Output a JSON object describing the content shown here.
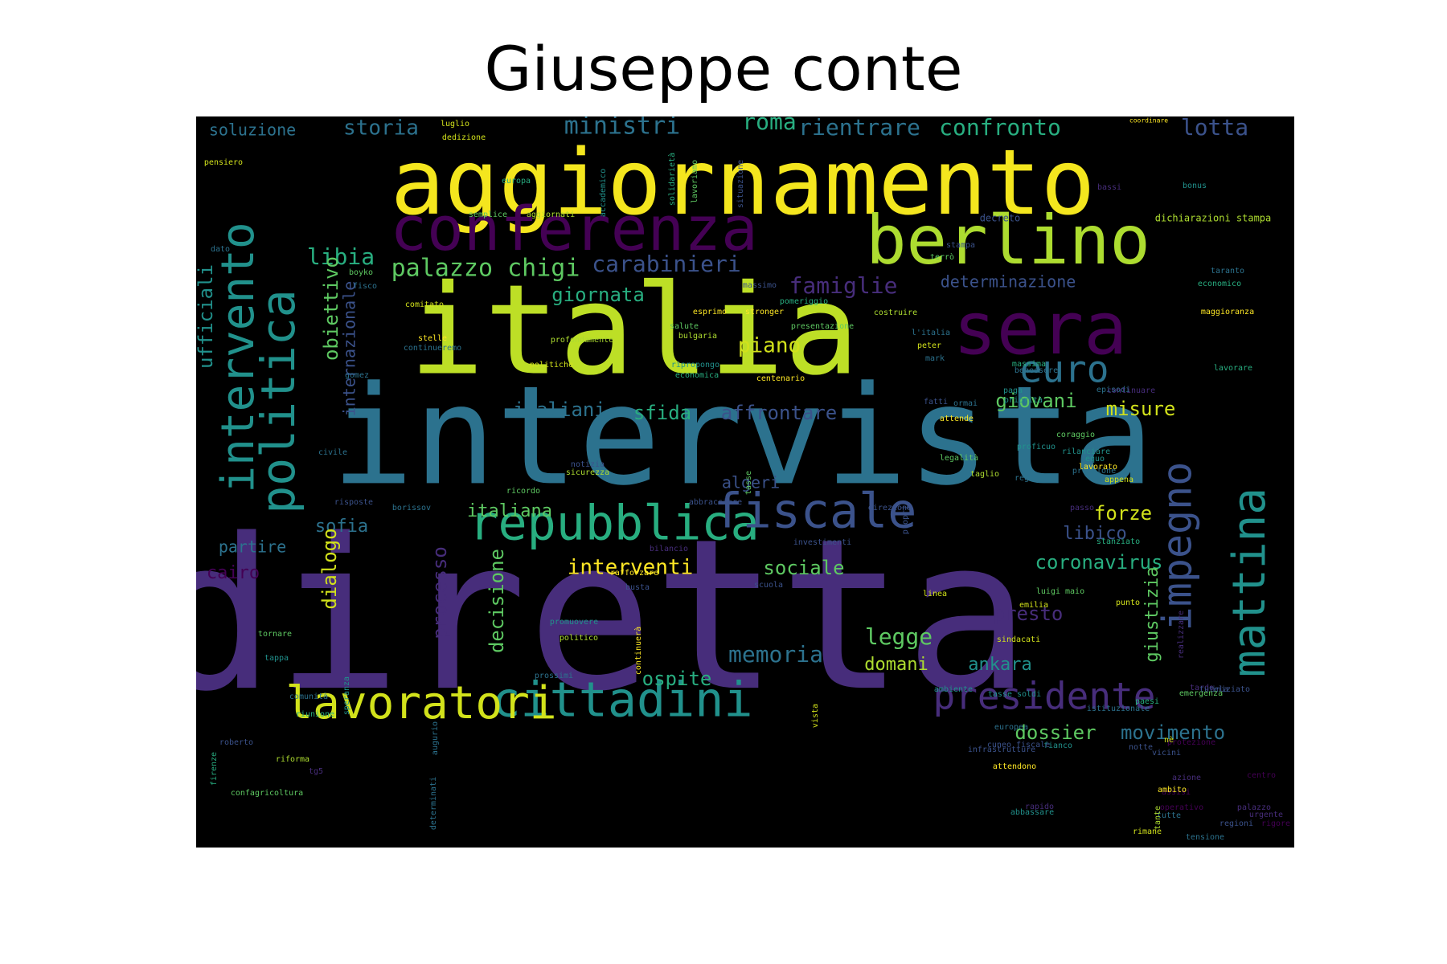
{
  "figure": {
    "title": "Giuseppe conte"
  },
  "palette": [
    "#440154",
    "#472d7b",
    "#3b528b",
    "#2c728e",
    "#21918c",
    "#28ae80",
    "#5ec962",
    "#addc30",
    "#fde725"
  ],
  "words": [
    {
      "text": "diretta",
      "color": "#472d7b"
    },
    {
      "text": "intervista",
      "color": "#2c728e"
    },
    {
      "text": "italia",
      "color": "#bddf26"
    },
    {
      "text": "aggiornamento",
      "color": "#f4e61e"
    },
    {
      "text": "sera",
      "color": "#440154"
    },
    {
      "text": "berlino",
      "color": "#addc30"
    },
    {
      "text": "conferenza",
      "color": "#440154"
    },
    {
      "text": "repubblica",
      "color": "#28ae80"
    },
    {
      "text": "cittadini",
      "color": "#21918c"
    },
    {
      "text": "lavoratori",
      "color": "#d2e21b"
    },
    {
      "text": "fiscale",
      "color": "#3b528b"
    },
    {
      "text": "politica",
      "color": "#21918c"
    },
    {
      "text": "intervento",
      "color": "#21918c"
    },
    {
      "text": "mattina",
      "color": "#21918c"
    },
    {
      "text": "impegno",
      "color": "#3b528b"
    },
    {
      "text": "presidente",
      "color": "#472d7b"
    },
    {
      "text": "euro",
      "color": "#2c728e"
    },
    {
      "text": "palazzo chigi",
      "color": "#5ec962"
    },
    {
      "text": "carabinieri",
      "color": "#3b528b"
    },
    {
      "text": "libia",
      "color": "#28ae80"
    },
    {
      "text": "obiettivo",
      "color": "#5ec962"
    },
    {
      "text": "ufficiali",
      "color": "#21918c"
    },
    {
      "text": "internazionale",
      "color": "#3b528b"
    },
    {
      "text": "giornata",
      "color": "#28ae80"
    },
    {
      "text": "famiglie",
      "color": "#472d7b"
    },
    {
      "text": "determinazione",
      "color": "#3b528b"
    },
    {
      "text": "storia",
      "color": "#2c728e"
    },
    {
      "text": "ministri",
      "color": "#2c728e"
    },
    {
      "text": "roma",
      "color": "#28ae80"
    },
    {
      "text": "rientrare",
      "color": "#2c728e"
    },
    {
      "text": "confronto",
      "color": "#28ae80"
    },
    {
      "text": "lotta",
      "color": "#3b528b"
    },
    {
      "text": "soluzione",
      "color": "#2c728e"
    },
    {
      "text": "piano",
      "color": "#d2e21b"
    },
    {
      "text": "italiani",
      "color": "#2c728e"
    },
    {
      "text": "sfida",
      "color": "#28ae80"
    },
    {
      "text": "affrontare",
      "color": "#3b528b"
    },
    {
      "text": "giovani",
      "color": "#5ec962"
    },
    {
      "text": "misure",
      "color": "#d2e21b"
    },
    {
      "text": "algeri",
      "color": "#3b528b"
    },
    {
      "text": "italiana",
      "color": "#5ec962"
    },
    {
      "text": "sofia",
      "color": "#2c728e"
    },
    {
      "text": "partire",
      "color": "#2c728e"
    },
    {
      "text": "forze",
      "color": "#d2e21b"
    },
    {
      "text": "libico",
      "color": "#3b528b"
    },
    {
      "text": "coronavirus",
      "color": "#28ae80"
    },
    {
      "text": "interventi",
      "color": "#fde725"
    },
    {
      "text": "sociale",
      "color": "#5ec962"
    },
    {
      "text": "dialogo",
      "color": "#d2e21b"
    },
    {
      "text": "processo",
      "color": "#472d7b"
    },
    {
      "text": "decisione",
      "color": "#5ec962"
    },
    {
      "text": "giustizia",
      "color": "#5ec962"
    },
    {
      "text": "presto",
      "color": "#472d7b"
    },
    {
      "text": "legge",
      "color": "#5ec962"
    },
    {
      "text": "memoria",
      "color": "#2c728e"
    },
    {
      "text": "ospite",
      "color": "#28ae80"
    },
    {
      "text": "domani",
      "color": "#addc30"
    },
    {
      "text": "ankara",
      "color": "#21918c"
    },
    {
      "text": "dossier",
      "color": "#5ec962"
    },
    {
      "text": "movimento",
      "color": "#2c728e"
    },
    {
      "text": "cairo",
      "color": "#440154"
    },
    {
      "text": "luglio",
      "color": "#d2e21b"
    },
    {
      "text": "dedizione",
      "color": "#d2e21b"
    },
    {
      "text": "pensiero",
      "color": "#d2e21b"
    },
    {
      "text": "europa",
      "color": "#28ae80"
    },
    {
      "text": "accademico",
      "color": "#21918c"
    },
    {
      "text": "solidarietà",
      "color": "#28ae80"
    },
    {
      "text": "lavoriamo",
      "color": "#5ec962"
    },
    {
      "text": "situazione",
      "color": "#3b528b"
    },
    {
      "text": "semplice",
      "color": "#5ec962"
    },
    {
      "text": "aggiornati",
      "color": "#addc30"
    },
    {
      "text": "decreto",
      "color": "#3b528b"
    },
    {
      "text": "dichiarazioni stampa",
      "color": "#addc30"
    },
    {
      "text": "coordinare",
      "color": "#fde725"
    },
    {
      "text": "bonus",
      "color": "#21918c"
    },
    {
      "text": "bassi",
      "color": "#472d7b"
    },
    {
      "text": "dato",
      "color": "#2c728e"
    },
    {
      "text": "boyko",
      "color": "#5ec962"
    },
    {
      "text": "fisco",
      "color": "#2c728e"
    },
    {
      "text": "massimo",
      "color": "#3b528b"
    },
    {
      "text": "terrò",
      "color": "#5ec962"
    },
    {
      "text": "stampa",
      "color": "#3b528b"
    },
    {
      "text": "economico",
      "color": "#28ae80"
    },
    {
      "text": "taranto",
      "color": "#2c728e"
    },
    {
      "text": "comitato",
      "color": "#d2e21b"
    },
    {
      "text": "esprimo",
      "color": "#fde725"
    },
    {
      "text": "stronger",
      "color": "#fde725"
    },
    {
      "text": "pomeriggio",
      "color": "#28ae80"
    },
    {
      "text": "costruire",
      "color": "#addc30"
    },
    {
      "text": "maggioranza",
      "color": "#fde725"
    },
    {
      "text": "stelle",
      "color": "#fde725"
    },
    {
      "text": "continueremo",
      "color": "#2c728e"
    },
    {
      "text": "politiche",
      "color": "#d2e21b"
    },
    {
      "text": "profondamente",
      "color": "#addc30"
    },
    {
      "text": "bulgaria",
      "color": "#addc30"
    },
    {
      "text": "ripropongo",
      "color": "#21918c"
    },
    {
      "text": "economica",
      "color": "#28ae80"
    },
    {
      "text": "salute",
      "color": "#5ec962"
    },
    {
      "text": "presentazione",
      "color": "#5ec962"
    },
    {
      "text": "l'italia",
      "color": "#2c728e"
    },
    {
      "text": "peter",
      "color": "#d2e21b"
    },
    {
      "text": "mark",
      "color": "#2c728e"
    },
    {
      "text": "massima",
      "color": "#28ae80"
    },
    {
      "text": "benessere",
      "color": "#2c728e"
    },
    {
      "text": "lavorare",
      "color": "#28ae80"
    },
    {
      "text": "paga",
      "color": "#21918c"
    },
    {
      "text": "centenario",
      "color": "#fde725"
    },
    {
      "text": "episodi",
      "color": "#2c728e"
    },
    {
      "text": "continuare",
      "color": "#472d7b"
    },
    {
      "text": "gomez",
      "color": "#2c728e"
    },
    {
      "text": "fatti",
      "color": "#3b528b"
    },
    {
      "text": "ormai",
      "color": "#2c728e"
    },
    {
      "text": "attende",
      "color": "#fde725"
    },
    {
      "text": "priorità",
      "color": "#21918c"
    },
    {
      "text": "coraggio",
      "color": "#5ec962"
    },
    {
      "text": "rilanciare",
      "color": "#21918c"
    },
    {
      "text": "proficuo",
      "color": "#21918c"
    },
    {
      "text": "civile",
      "color": "#2c728e"
    },
    {
      "text": "notizia",
      "color": "#3b528b"
    },
    {
      "text": "sicurezza",
      "color": "#addc30"
    },
    {
      "text": "tasse",
      "color": "#5ec962"
    },
    {
      "text": "legalità",
      "color": "#5ec962"
    },
    {
      "text": "taglio",
      "color": "#addc30"
    },
    {
      "text": "pressione",
      "color": "#2c728e"
    },
    {
      "text": "equo",
      "color": "#21918c"
    },
    {
      "text": "lavorato",
      "color": "#fde725"
    },
    {
      "text": "regno",
      "color": "#2c728e"
    },
    {
      "text": "appena",
      "color": "#d2e21b"
    },
    {
      "text": "ricordo",
      "color": "#5ec962"
    },
    {
      "text": "risposte",
      "color": "#3b528b"
    },
    {
      "text": "borissov",
      "color": "#2c728e"
    },
    {
      "text": "abbracciare",
      "color": "#3b528b"
    },
    {
      "text": "direzione",
      "color": "#3b528b"
    },
    {
      "text": "passo",
      "color": "#472d7b"
    },
    {
      "text": "propri",
      "color": "#3b528b"
    },
    {
      "text": "investimenti",
      "color": "#3b528b"
    },
    {
      "text": "stanziato",
      "color": "#28ae80"
    },
    {
      "text": "rafforzare",
      "color": "#fde725"
    },
    {
      "text": "bilancio",
      "color": "#472d7b"
    },
    {
      "text": "busta",
      "color": "#3b528b"
    },
    {
      "text": "scuola",
      "color": "#3b528b"
    },
    {
      "text": "linea",
      "color": "#d2e21b"
    },
    {
      "text": "luigi maio",
      "color": "#5ec962"
    },
    {
      "text": "punto",
      "color": "#d2e21b"
    },
    {
      "text": "emilia",
      "color": "#d2e21b"
    },
    {
      "text": "tornare",
      "color": "#5ec962"
    },
    {
      "text": "promuovere",
      "color": "#21918c"
    },
    {
      "text": "politico",
      "color": "#addc30"
    },
    {
      "text": "continuerà",
      "color": "#fde725"
    },
    {
      "text": "sindacati",
      "color": "#d2e21b"
    },
    {
      "text": "tappa",
      "color": "#21918c"
    },
    {
      "text": "prossimi",
      "color": "#2c728e"
    },
    {
      "text": "realizzare",
      "color": "#472d7b"
    },
    {
      "text": "ambiente",
      "color": "#21918c"
    },
    {
      "text": "tasse soldi",
      "color": "#21918c"
    },
    {
      "text": "comunità",
      "color": "#2c728e"
    },
    {
      "text": "speranza",
      "color": "#21918c"
    },
    {
      "text": "vista",
      "color": "#d2e21b"
    },
    {
      "text": "paesi",
      "color": "#28ae80"
    },
    {
      "text": "istituzionale",
      "color": "#2c728e"
    },
    {
      "text": "riunione",
      "color": "#28ae80"
    },
    {
      "text": "europea",
      "color": "#2c728e"
    },
    {
      "text": "notte",
      "color": "#3b528b"
    },
    {
      "text": "roberto",
      "color": "#3b528b"
    },
    {
      "text": "riforma",
      "color": "#addc30"
    },
    {
      "text": "infrastrutture",
      "color": "#3b528b"
    },
    {
      "text": "attendono",
      "color": "#fde725"
    },
    {
      "text": "fianco",
      "color": "#21918c"
    },
    {
      "text": "cuneo fiscale",
      "color": "#3b528b"
    },
    {
      "text": "firenze",
      "color": "#28ae80"
    },
    {
      "text": "tg5",
      "color": "#472d7b"
    },
    {
      "text": "augurio",
      "color": "#2c728e"
    },
    {
      "text": "confagricoltura",
      "color": "#5ec962"
    },
    {
      "text": "determinati",
      "color": "#2c728e"
    },
    {
      "text": "rapido",
      "color": "#472d7b"
    },
    {
      "text": "abbassare",
      "color": "#21918c"
    },
    {
      "text": "rimane",
      "color": "#d2e21b"
    },
    {
      "text": "tutte",
      "color": "#2c728e"
    },
    {
      "text": "tante",
      "color": "#addc30"
    },
    {
      "text": "regioni",
      "color": "#3b528b"
    },
    {
      "text": "assisi",
      "color": "#440154"
    },
    {
      "text": "operativo",
      "color": "#440154"
    },
    {
      "text": "centro",
      "color": "#440154"
    },
    {
      "text": "tardo",
      "color": "#472d7b"
    },
    {
      "text": "tutela",
      "color": "#3b528b"
    },
    {
      "text": "iniziato",
      "color": "#3b528b"
    },
    {
      "text": "emergenza",
      "color": "#5ec962"
    },
    {
      "text": "protezione",
      "color": "#440154"
    },
    {
      "text": "rigore",
      "color": "#440154"
    },
    {
      "text": "urgente",
      "color": "#472d7b"
    },
    {
      "text": "palazzo",
      "color": "#472d7b"
    },
    {
      "text": "tensione",
      "color": "#2c728e"
    },
    {
      "text": "azione",
      "color": "#472d7b"
    },
    {
      "text": "ambito",
      "color": "#fde725"
    },
    {
      "text": "vicini",
      "color": "#3b528b"
    },
    {
      "text": "nè",
      "color": "#d2e21b"
    }
  ]
}
